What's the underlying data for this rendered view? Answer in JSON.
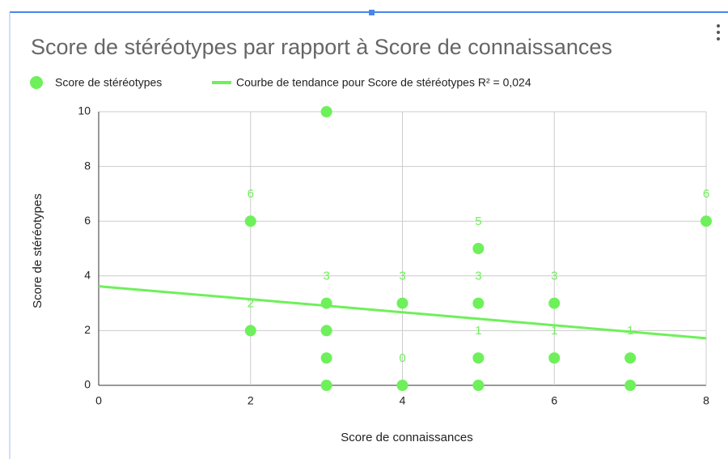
{
  "chart_data": {
    "type": "scatter",
    "title": "Score de stéréotypes par rapport à Score de connaissances",
    "x_label": "Score de connaissances",
    "y_label": "Score de stéréotypes",
    "series": [
      {
        "name": "Score de stéréotypes",
        "color": "#6ef05a",
        "x": [
          2,
          2,
          3,
          3,
          3,
          3,
          3,
          4,
          4,
          5,
          5,
          5,
          5,
          6,
          6,
          7,
          7,
          8
        ],
        "values": [
          6,
          2,
          10,
          3,
          2,
          1,
          0,
          3,
          0,
          5,
          3,
          1,
          0,
          3,
          1,
          1,
          0,
          6
        ]
      }
    ],
    "trendline": {
      "name": "Courbe de tendance pour Score de stéréotypes R² = 0,024",
      "color": "#6ef05a",
      "x": [
        0,
        8
      ],
      "values": [
        3.62,
        1.72
      ]
    },
    "xlim": [
      0,
      8
    ],
    "ylim": [
      0,
      10
    ],
    "xticks": [
      0,
      2,
      4,
      6,
      8
    ],
    "yticks": [
      0,
      2,
      4,
      6,
      8,
      10
    ],
    "grid": true,
    "legend": "top"
  }
}
